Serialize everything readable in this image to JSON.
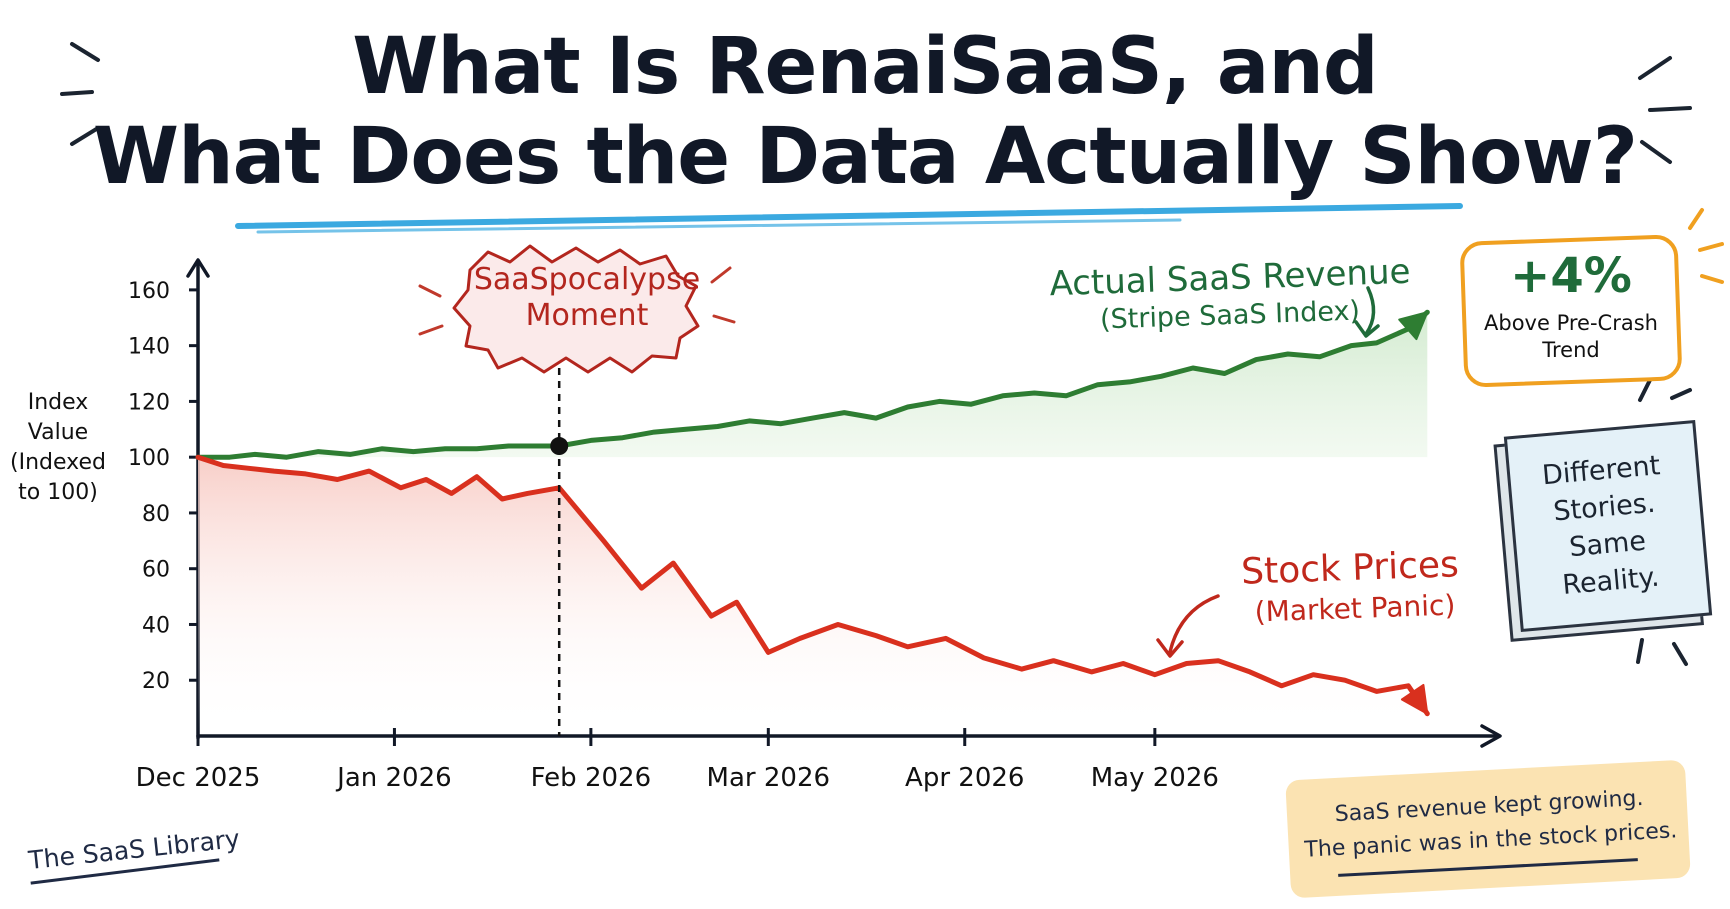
{
  "title": {
    "line1": "What Is RenaiSaaS, and",
    "line2": "What Does the Data Actually Show?"
  },
  "ylabel": {
    "line1": "Index",
    "line2": "Value",
    "line3": "(Indexed",
    "line4": "to 100)"
  },
  "event": {
    "label_line1": "SaaSpocalypse",
    "label_line2": "Moment",
    "date": "2026-01-27"
  },
  "callouts": {
    "revenue_title": "Actual SaaS Revenue",
    "revenue_sub": "(Stripe SaaS Index)",
    "stock_title": "Stock Prices",
    "stock_sub": "(Market Panic)",
    "badge_value": "+4%",
    "badge_label_line1": "Above Pre-Crash",
    "badge_label_line2": "Trend",
    "sticky_line1": "Different",
    "sticky_line2": "Stories.",
    "sticky_line3": "Same",
    "sticky_line4": "Reality.",
    "note_line1": "SaaS revenue kept growing.",
    "note_line2": "The panic was in the stock prices."
  },
  "brand": "The SaaS Library",
  "colors": {
    "revenue": "#2e7d32",
    "revenue_fill": "#d8efd6",
    "stock": "#d9301e",
    "stock_fill": "#fbe0dc",
    "axis": "#111827",
    "title_underline": "#3ba9e0",
    "badge_border": "#f0a020",
    "burst_fill": "#fbeaea",
    "burst_stroke": "#b3261e"
  },
  "chart_data": {
    "type": "line",
    "title": "What Is RenaiSaaS, and What Does the Data Actually Show?",
    "xlabel": "",
    "ylabel": "Index Value (Indexed to 100)",
    "x_ticks": [
      "Dec 2025",
      "Jan 2026",
      "Feb 2026",
      "Mar 2026",
      "Apr 2026",
      "May 2026"
    ],
    "x_tick_dates": [
      "2025-12-01",
      "2026-01-01",
      "2026-02-01",
      "2026-03-01",
      "2026-04-01",
      "2026-05-01"
    ],
    "y_ticks": [
      20,
      40,
      60,
      80,
      100,
      120,
      140,
      160
    ],
    "ylim": [
      0,
      170
    ],
    "x_range": [
      "2025-12-01",
      "2026-06-15"
    ],
    "grid": false,
    "legend": "none",
    "series": [
      {
        "name": "Actual SaaS Revenue (Stripe SaaS Index)",
        "x": [
          "2025-12-01",
          "2025-12-06",
          "2025-12-10",
          "2025-12-15",
          "2025-12-20",
          "2025-12-25",
          "2025-12-30",
          "2026-01-04",
          "2026-01-09",
          "2026-01-14",
          "2026-01-19",
          "2026-01-24",
          "2026-01-27",
          "2026-02-01",
          "2026-02-06",
          "2026-02-11",
          "2026-02-16",
          "2026-02-21",
          "2026-02-26",
          "2026-03-03",
          "2026-03-08",
          "2026-03-13",
          "2026-03-18",
          "2026-03-23",
          "2026-03-28",
          "2026-04-02",
          "2026-04-07",
          "2026-04-12",
          "2026-04-17",
          "2026-04-22",
          "2026-04-27",
          "2026-05-02",
          "2026-05-07",
          "2026-05-12",
          "2026-05-17",
          "2026-05-22",
          "2026-05-27",
          "2026-06-01",
          "2026-06-05",
          "2026-06-10",
          "2026-06-13"
        ],
        "values": [
          100,
          100,
          101,
          100,
          102,
          101,
          103,
          102,
          103,
          103,
          104,
          104,
          104,
          106,
          107,
          109,
          110,
          111,
          113,
          112,
          114,
          116,
          114,
          118,
          120,
          119,
          122,
          123,
          122,
          126,
          127,
          129,
          132,
          130,
          135,
          137,
          136,
          140,
          141,
          146,
          152
        ]
      },
      {
        "name": "Stock Prices (Market Panic)",
        "x": [
          "2025-12-01",
          "2025-12-05",
          "2025-12-09",
          "2025-12-13",
          "2025-12-18",
          "2025-12-23",
          "2025-12-28",
          "2026-01-02",
          "2026-01-06",
          "2026-01-10",
          "2026-01-14",
          "2026-01-18",
          "2026-01-22",
          "2026-01-27",
          "2026-02-03",
          "2026-02-09",
          "2026-02-14",
          "2026-02-20",
          "2026-02-24",
          "2026-03-01",
          "2026-03-06",
          "2026-03-12",
          "2026-03-18",
          "2026-03-23",
          "2026-03-29",
          "2026-04-04",
          "2026-04-10",
          "2026-04-15",
          "2026-04-21",
          "2026-04-26",
          "2026-05-01",
          "2026-05-06",
          "2026-05-11",
          "2026-05-16",
          "2026-05-21",
          "2026-05-26",
          "2026-05-31",
          "2026-06-05",
          "2026-06-10",
          "2026-06-13"
        ],
        "values": [
          100,
          97,
          96,
          95,
          94,
          92,
          95,
          89,
          92,
          87,
          93,
          85,
          87,
          89,
          70,
          53,
          62,
          43,
          48,
          30,
          35,
          40,
          36,
          32,
          35,
          28,
          24,
          27,
          23,
          26,
          22,
          26,
          27,
          23,
          18,
          22,
          20,
          16,
          18,
          8
        ]
      }
    ]
  }
}
